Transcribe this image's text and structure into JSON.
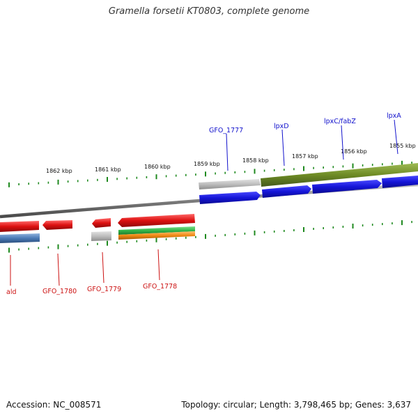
{
  "title": "Gramella forsetii KT0803, complete genome",
  "footer": {
    "accession": "Accession: NC_008571",
    "stats": "Topology: circular; Length: 3,798,465 bp; Genes: 3,637"
  },
  "colors": {
    "backbone": "#7d7d7d",
    "ticks": "#1f8a1f",
    "forward_label": "#1010cc",
    "reverse_label": "#cc1111",
    "gene_blue": "#1515d8",
    "gene_olive": "#6e8b25",
    "gene_grey": "#bdbdbd",
    "gene_red": "#dd1111",
    "gene_steelblue": "#4a7ab5",
    "gene_green": "#33b54a",
    "gene_orange": "#f08a14"
  },
  "scale_labels": [
    "1862 kbp",
    "1861 kbp",
    "1860 kbp",
    "1859 kbp",
    "1858 kbp",
    "1857 kbp",
    "1856 kbp",
    "1855 kbp"
  ],
  "forward_gene_labels": [
    "GFO_1777",
    "lpxD",
    "lpxC/fabZ",
    "lpxA"
  ],
  "reverse_gene_labels": [
    "ald",
    "GFO_1780",
    "GFO_1779",
    "GFO_1778"
  ]
}
